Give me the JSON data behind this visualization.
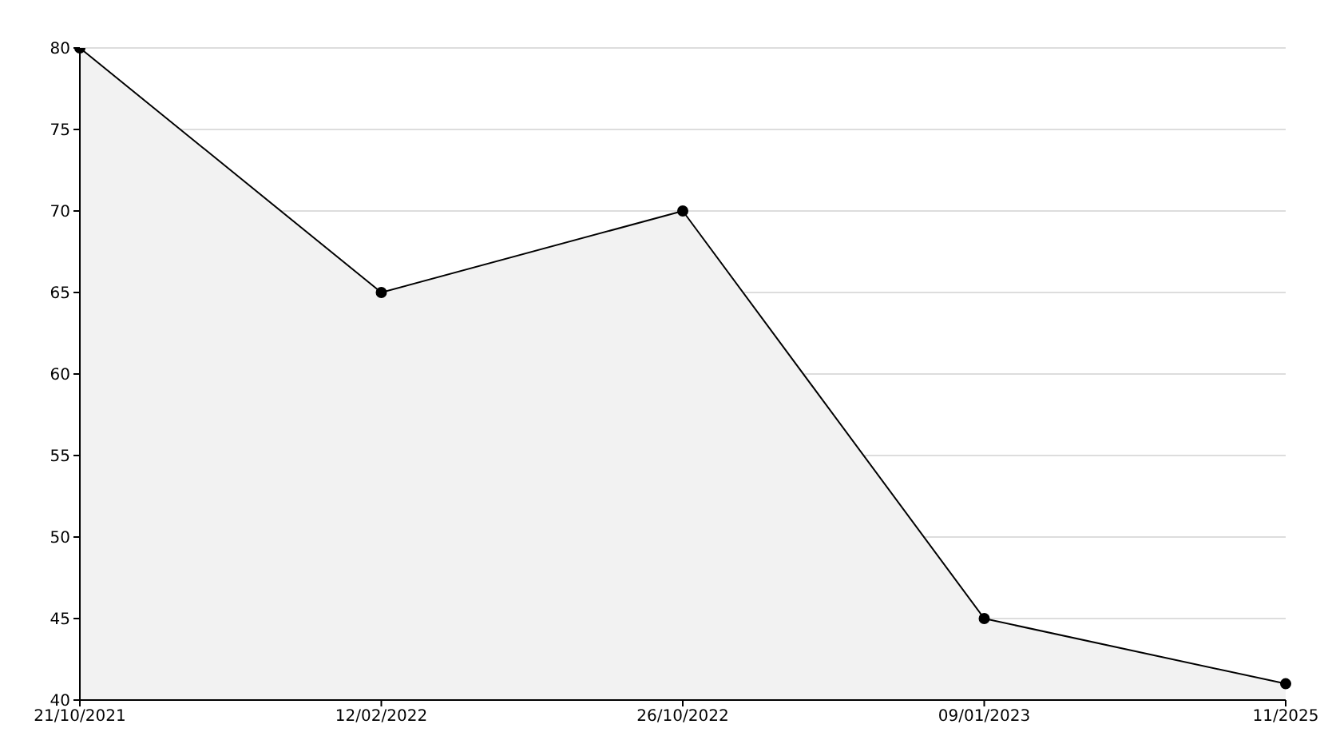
{
  "chart_data": {
    "type": "area",
    "categories": [
      "21/10/2021",
      "12/02/2022",
      "26/10/2022",
      "09/01/2023",
      "11/2025"
    ],
    "series": [
      {
        "color": "#000000",
        "values": [
          80,
          65,
          70,
          45,
          41
        ]
      }
    ],
    "ylim": [
      40,
      80
    ],
    "yticks": [
      40,
      45,
      50,
      55,
      60,
      65,
      70,
      75,
      80
    ],
    "grid": "y",
    "marker": "circle",
    "line_style": "solid"
  }
}
